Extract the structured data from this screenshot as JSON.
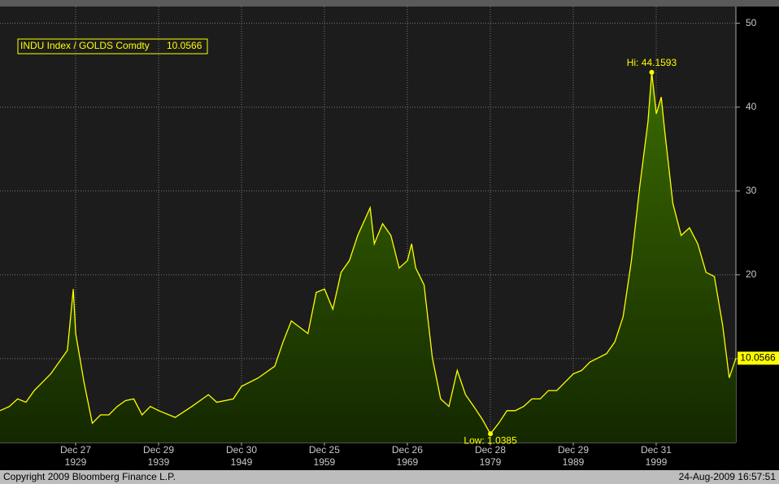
{
  "chart_data": {
    "type": "area",
    "x": [
      1920.87,
      1922,
      1923,
      1924,
      1925,
      1926,
      1927,
      1928,
      1929,
      1929.7,
      1930,
      1931,
      1932,
      1933,
      1934,
      1935,
      1936,
      1937,
      1938,
      1939,
      1940,
      1942,
      1944,
      1946,
      1947,
      1949,
      1950,
      1952,
      1954,
      1955,
      1956,
      1958,
      1959,
      1960,
      1961,
      1962,
      1963,
      1964,
      1965.5,
      1966,
      1967,
      1968,
      1969,
      1970,
      1970.5,
      1971,
      1972,
      1973,
      1974,
      1975,
      1976,
      1977,
      1978,
      1979,
      1980,
      1981,
      1982,
      1983,
      1984,
      1985,
      1986,
      1987,
      1988,
      1989,
      1990,
      1991,
      1992,
      1993,
      1994,
      1995,
      1996,
      1997,
      1998,
      1999,
      1999.45,
      2000,
      2000.6,
      2001,
      2002,
      2003,
      2004,
      2005,
      2006,
      2007,
      2008,
      2008.8,
      2009.6
    ],
    "series": [
      {
        "name": "INDU Index / GOLDS Comdty",
        "color": "#ffff00",
        "values": [
          3.8,
          4.3,
          5.2,
          4.8,
          6.2,
          7.2,
          8.2,
          9.6,
          11,
          18.3,
          13,
          7.2,
          2.3,
          3.3,
          3.3,
          4.3,
          5,
          5.2,
          3.3,
          4.3,
          3.8,
          3,
          4.3,
          5.7,
          4.8,
          5.2,
          6.7,
          7.7,
          9.1,
          12,
          14.5,
          13,
          17.9,
          18.3,
          15.9,
          20.3,
          21.7,
          24.7,
          28,
          23.7,
          26.1,
          24.7,
          20.8,
          21.7,
          23.7,
          20.8,
          18.8,
          10.1,
          5.2,
          4.3,
          8.6,
          5.7,
          4.3,
          2.8,
          1.0385,
          2.3,
          3.8,
          3.8,
          4.3,
          5.2,
          5.2,
          6.2,
          6.2,
          7.2,
          8.2,
          8.6,
          9.6,
          10.1,
          10.6,
          12,
          15,
          21.7,
          30.5,
          38.3,
          44.1593,
          39.2,
          41.2,
          37.3,
          28.5,
          24.7,
          25.6,
          23.7,
          20.3,
          19.8,
          14,
          7.7,
          10.0566
        ]
      }
    ],
    "xlim": [
      1920.87,
      2009.6
    ],
    "xticks": [
      {
        "value": 1929.99,
        "label": "Dec 27\n1929"
      },
      {
        "value": 1939.99,
        "label": "Dec 29\n1939"
      },
      {
        "value": 1949.99,
        "label": "Dec 30\n1949"
      },
      {
        "value": 1959.98,
        "label": "Dec 25\n1959"
      },
      {
        "value": 1969.98,
        "label": "Dec 26\n1969"
      },
      {
        "value": 1979.99,
        "label": "Dec 28\n1979"
      },
      {
        "value": 1989.99,
        "label": "Dec 29\n1989"
      },
      {
        "value": 1999.99,
        "label": "Dec 31\n1999"
      }
    ],
    "ylim": [
      0,
      52
    ],
    "yticks": [
      10,
      20,
      30,
      40,
      50
    ],
    "grid": true,
    "high": {
      "label": "Hi: 44.1593",
      "x": 1999.45,
      "value": 44.1593
    },
    "low": {
      "label": "Low: 1.0385",
      "x": 1980,
      "value": 1.0385
    },
    "last": {
      "label": "10.0566",
      "value": 10.0566
    },
    "legend_value": "10.0566",
    "footer_left": "Copyright 2009 Bloomberg Finance L.P.",
    "footer_right": "24-Aug-2009 16:57:51"
  }
}
